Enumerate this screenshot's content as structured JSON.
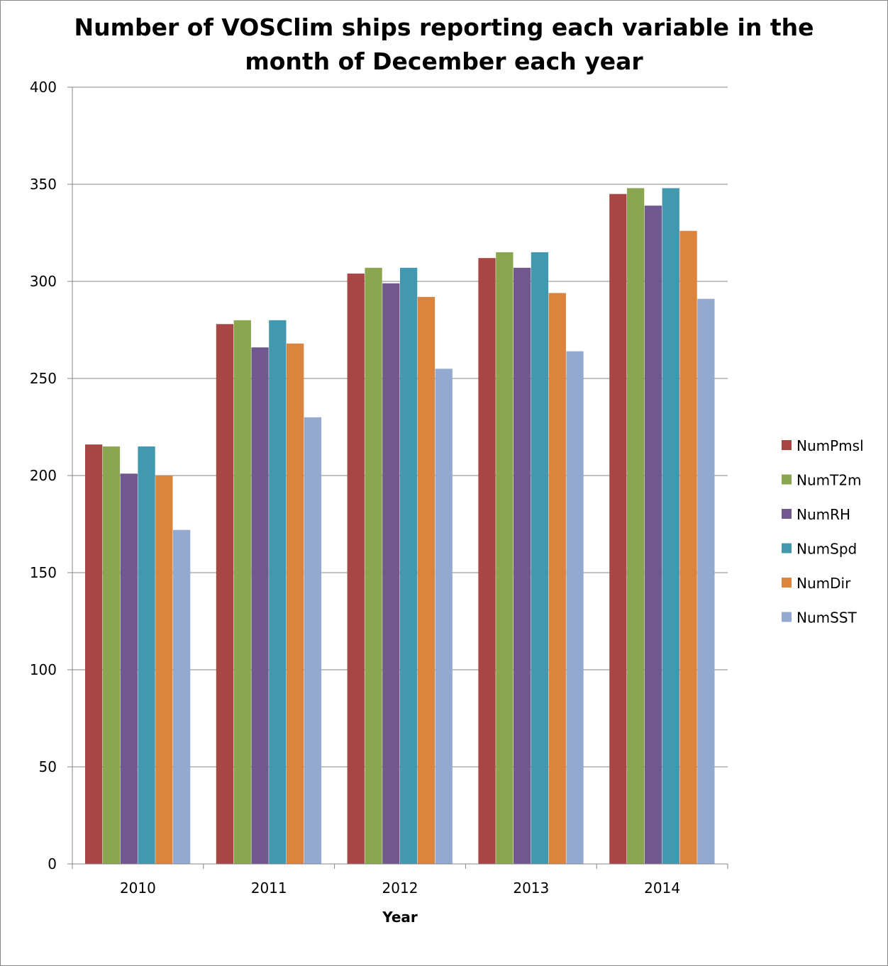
{
  "chart_data": {
    "type": "bar",
    "title": "Number of VOSClim ships reporting each variable in the month of December each year",
    "xlabel": "Year",
    "ylabel": "",
    "categories": [
      "2010",
      "2011",
      "2012",
      "2013",
      "2014"
    ],
    "ylim": [
      0,
      400
    ],
    "yticks": [
      0,
      50,
      100,
      150,
      200,
      250,
      300,
      350,
      400
    ],
    "grid": true,
    "legend_position": "right",
    "series": [
      {
        "name": "NumPmsl",
        "color": "#A84646",
        "values": [
          216,
          278,
          304,
          312,
          345
        ]
      },
      {
        "name": "NumT2m",
        "color": "#8AA64F",
        "values": [
          215,
          280,
          307,
          315,
          348
        ]
      },
      {
        "name": "NumRH",
        "color": "#71588F",
        "values": [
          201,
          266,
          299,
          307,
          339
        ]
      },
      {
        "name": "NumSpd",
        "color": "#4198AF",
        "values": [
          215,
          280,
          307,
          315,
          348
        ]
      },
      {
        "name": "NumDir",
        "color": "#DB843D",
        "values": [
          200,
          268,
          292,
          294,
          326
        ]
      },
      {
        "name": "NumSST",
        "color": "#93A9D0",
        "values": [
          172,
          230,
          255,
          264,
          291
        ]
      }
    ]
  }
}
